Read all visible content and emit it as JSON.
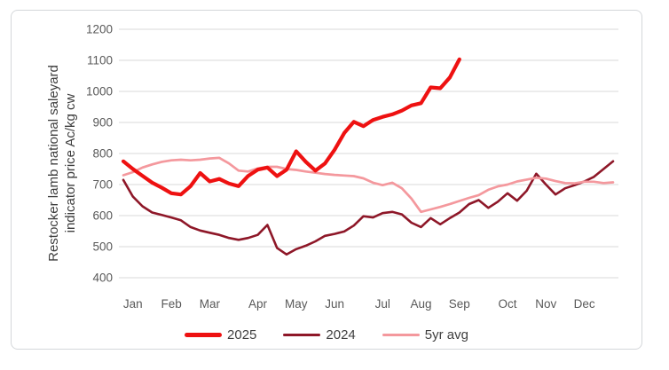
{
  "chart_data": {
    "type": "line",
    "title": "",
    "y_axis": {
      "title_line1": "Restocker lamb national saleyard",
      "title_line2": "indicator price Ac/kg cw",
      "min": 400,
      "max": 1200,
      "tick_step": 100,
      "ticks": [
        1200,
        1100,
        1000,
        900,
        800,
        700,
        600,
        500,
        400
      ]
    },
    "x_axis": {
      "tick_labels": [
        "Jan",
        "Feb",
        "Mar",
        "Apr",
        "May",
        "Jun",
        "Jul",
        "Aug",
        "Sep",
        "Oct",
        "Nov",
        "Dec"
      ],
      "label_week_index": [
        1,
        5,
        9,
        14,
        18,
        22,
        27,
        31,
        35,
        40,
        44,
        48
      ],
      "points_per_year": 52
    },
    "grid": "horizontal",
    "legend_position": "bottom",
    "colors": {
      "grid": "#d9d9d9",
      "tick_text": "#595959",
      "legend_text": "#404040",
      "border": "#d4d7da"
    },
    "series": [
      {
        "name": "2025",
        "color": "#ee1111",
        "stroke_width": 4.2,
        "values": [
          775,
          750,
          728,
          706,
          690,
          672,
          668,
          695,
          737,
          710,
          718,
          703,
          695,
          728,
          748,
          755,
          727,
          748,
          807,
          773,
          745,
          768,
          812,
          866,
          902,
          888,
          908,
          918,
          926,
          938,
          955,
          962,
          1013,
          1010,
          1045,
          1103
        ]
      },
      {
        "name": "2024",
        "color": "#8e1728",
        "stroke_width": 2.6,
        "values": [
          715,
          661,
          630,
          610,
          602,
          594,
          585,
          563,
          552,
          545,
          538,
          528,
          522,
          528,
          538,
          570,
          496,
          475,
          492,
          503,
          517,
          535,
          541,
          549,
          568,
          598,
          594,
          608,
          612,
          604,
          577,
          563,
          592,
          572,
          592,
          610,
          637,
          650,
          625,
          645,
          672,
          648,
          680,
          735,
          700,
          668,
          688,
          698,
          710,
          725,
          750,
          775
        ]
      },
      {
        "name": "5yr avg",
        "color": "#f4989d",
        "stroke_width": 2.7,
        "values": [
          730,
          740,
          755,
          765,
          773,
          778,
          780,
          778,
          780,
          784,
          786,
          768,
          745,
          742,
          752,
          757,
          757,
          750,
          747,
          742,
          738,
          734,
          731,
          729,
          727,
          720,
          706,
          698,
          706,
          688,
          655,
          612,
          620,
          628,
          637,
          647,
          657,
          666,
          683,
          694,
          700,
          710,
          716,
          722,
          719,
          711,
          705,
          704,
          709,
          709,
          705,
          707
        ]
      }
    ]
  }
}
